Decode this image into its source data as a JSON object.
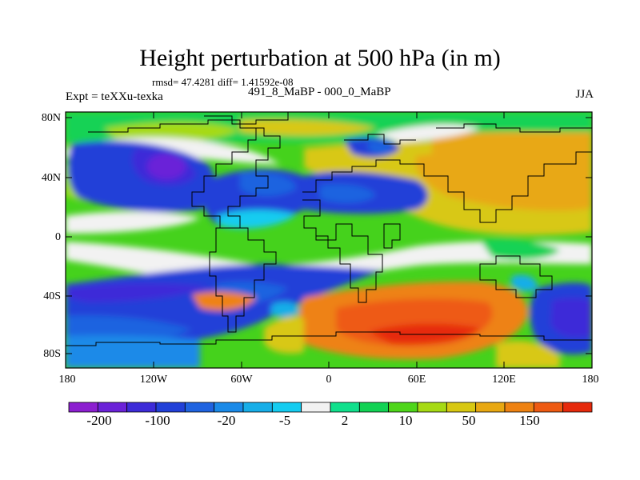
{
  "title": "Height perturbation at 500 hPa (in m)",
  "stats": "rmsd= 47.4281 diff= 1.41592e-08",
  "experiment": "Expt = teXXu-texka",
  "comparison": "491_8_MaBP - 000_0_MaBP",
  "season": "JJA",
  "axes": {
    "lat_labels": [
      "80N",
      "40N",
      "0",
      "40S",
      "80S"
    ],
    "lon_labels": [
      "180",
      "120W",
      "60W",
      "0",
      "60E",
      "120E",
      "180"
    ]
  },
  "colorbar": {
    "colors": [
      "#8c1fd0",
      "#6b22d8",
      "#3d2bd8",
      "#2140d8",
      "#1f63e0",
      "#1a8ae8",
      "#17aee8",
      "#15ccf0",
      "#f2f2f2",
      "#10e08c",
      "#12d254",
      "#4ed61a",
      "#a6da14",
      "#d8c812",
      "#e8a812",
      "#ee8212",
      "#ee5a12",
      "#e62a0c"
    ],
    "labels": [
      "-200",
      "-100",
      "-20",
      "-5",
      "2",
      "10",
      "50",
      "150"
    ]
  }
}
